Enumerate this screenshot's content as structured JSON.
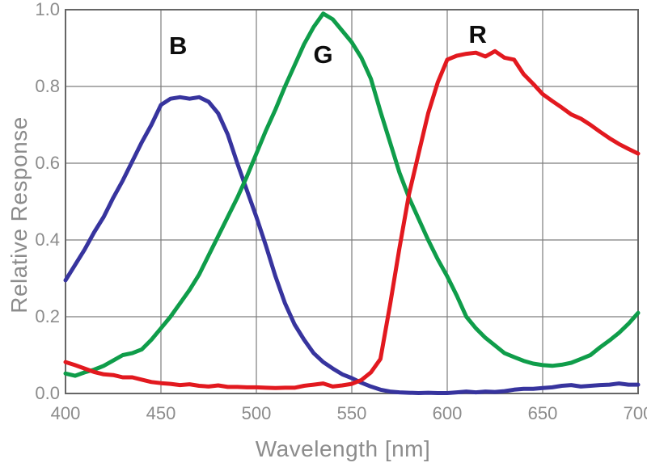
{
  "colors": {
    "background": "#ffffff",
    "grid": "#7d7d7d",
    "frame": "#666666",
    "tick_text": "#8c8c8c",
    "axis_title_text": "#8c8c8c",
    "series_label_text": "#0d0d0d"
  },
  "chart_data": {
    "type": "line",
    "title": "",
    "xlabel": "Wavelength [nm]",
    "ylabel": "Relative Response",
    "xlim": [
      400,
      700
    ],
    "ylim": [
      0.0,
      1.0
    ],
    "x_ticks": [
      400,
      450,
      500,
      550,
      600,
      650,
      700
    ],
    "y_ticks": [
      "0.0",
      "0.2",
      "0.4",
      "0.6",
      "0.8",
      "1.0"
    ],
    "grid": true,
    "legend": "inline-labels",
    "x": [
      400,
      405,
      410,
      415,
      420,
      425,
      430,
      435,
      440,
      445,
      450,
      455,
      460,
      465,
      470,
      475,
      480,
      485,
      490,
      495,
      500,
      505,
      510,
      515,
      520,
      525,
      530,
      535,
      540,
      545,
      550,
      555,
      560,
      565,
      570,
      575,
      580,
      585,
      590,
      595,
      600,
      605,
      610,
      615,
      620,
      625,
      630,
      635,
      640,
      645,
      650,
      655,
      660,
      665,
      670,
      675,
      680,
      685,
      690,
      695,
      700
    ],
    "series": [
      {
        "name": "B",
        "label": "B",
        "color": "#37349e",
        "label_x": 459,
        "label_y": 0.905,
        "values": [
          0.295,
          0.335,
          0.375,
          0.42,
          0.46,
          0.51,
          0.555,
          0.605,
          0.655,
          0.7,
          0.752,
          0.768,
          0.772,
          0.768,
          0.772,
          0.76,
          0.73,
          0.675,
          0.6,
          0.53,
          0.46,
          0.385,
          0.305,
          0.235,
          0.18,
          0.14,
          0.105,
          0.082,
          0.065,
          0.05,
          0.04,
          0.028,
          0.018,
          0.01,
          0.005,
          0.003,
          0.002,
          0.001,
          0.002,
          0.001,
          0.001,
          0.003,
          0.005,
          0.003,
          0.005,
          0.004,
          0.006,
          0.01,
          0.012,
          0.012,
          0.014,
          0.016,
          0.02,
          0.022,
          0.018,
          0.02,
          0.022,
          0.023,
          0.026,
          0.023,
          0.023
        ]
      },
      {
        "name": "G",
        "label": "G",
        "color": "#0f9d4a",
        "label_x": 535,
        "label_y": 0.882,
        "values": [
          0.052,
          0.046,
          0.055,
          0.062,
          0.072,
          0.086,
          0.1,
          0.105,
          0.115,
          0.14,
          0.17,
          0.2,
          0.235,
          0.27,
          0.31,
          0.36,
          0.41,
          0.46,
          0.51,
          0.565,
          0.625,
          0.685,
          0.74,
          0.8,
          0.855,
          0.91,
          0.955,
          0.99,
          0.975,
          0.945,
          0.915,
          0.875,
          0.82,
          0.735,
          0.655,
          0.575,
          0.51,
          0.455,
          0.4,
          0.35,
          0.305,
          0.255,
          0.2,
          0.17,
          0.145,
          0.125,
          0.105,
          0.095,
          0.085,
          0.078,
          0.074,
          0.072,
          0.075,
          0.08,
          0.09,
          0.1,
          0.12,
          0.138,
          0.158,
          0.182,
          0.21
        ]
      },
      {
        "name": "R",
        "label": "R",
        "color": "#e2191f",
        "label_x": 616,
        "label_y": 0.935,
        "values": [
          0.082,
          0.074,
          0.065,
          0.056,
          0.05,
          0.048,
          0.042,
          0.042,
          0.036,
          0.03,
          0.027,
          0.025,
          0.022,
          0.024,
          0.02,
          0.018,
          0.021,
          0.017,
          0.017,
          0.016,
          0.016,
          0.015,
          0.014,
          0.015,
          0.015,
          0.02,
          0.023,
          0.026,
          0.018,
          0.021,
          0.025,
          0.035,
          0.055,
          0.09,
          0.23,
          0.38,
          0.52,
          0.625,
          0.73,
          0.81,
          0.87,
          0.88,
          0.885,
          0.888,
          0.878,
          0.892,
          0.875,
          0.87,
          0.832,
          0.807,
          0.78,
          0.762,
          0.745,
          0.727,
          0.716,
          0.7,
          0.682,
          0.665,
          0.65,
          0.637,
          0.625
        ]
      }
    ]
  }
}
